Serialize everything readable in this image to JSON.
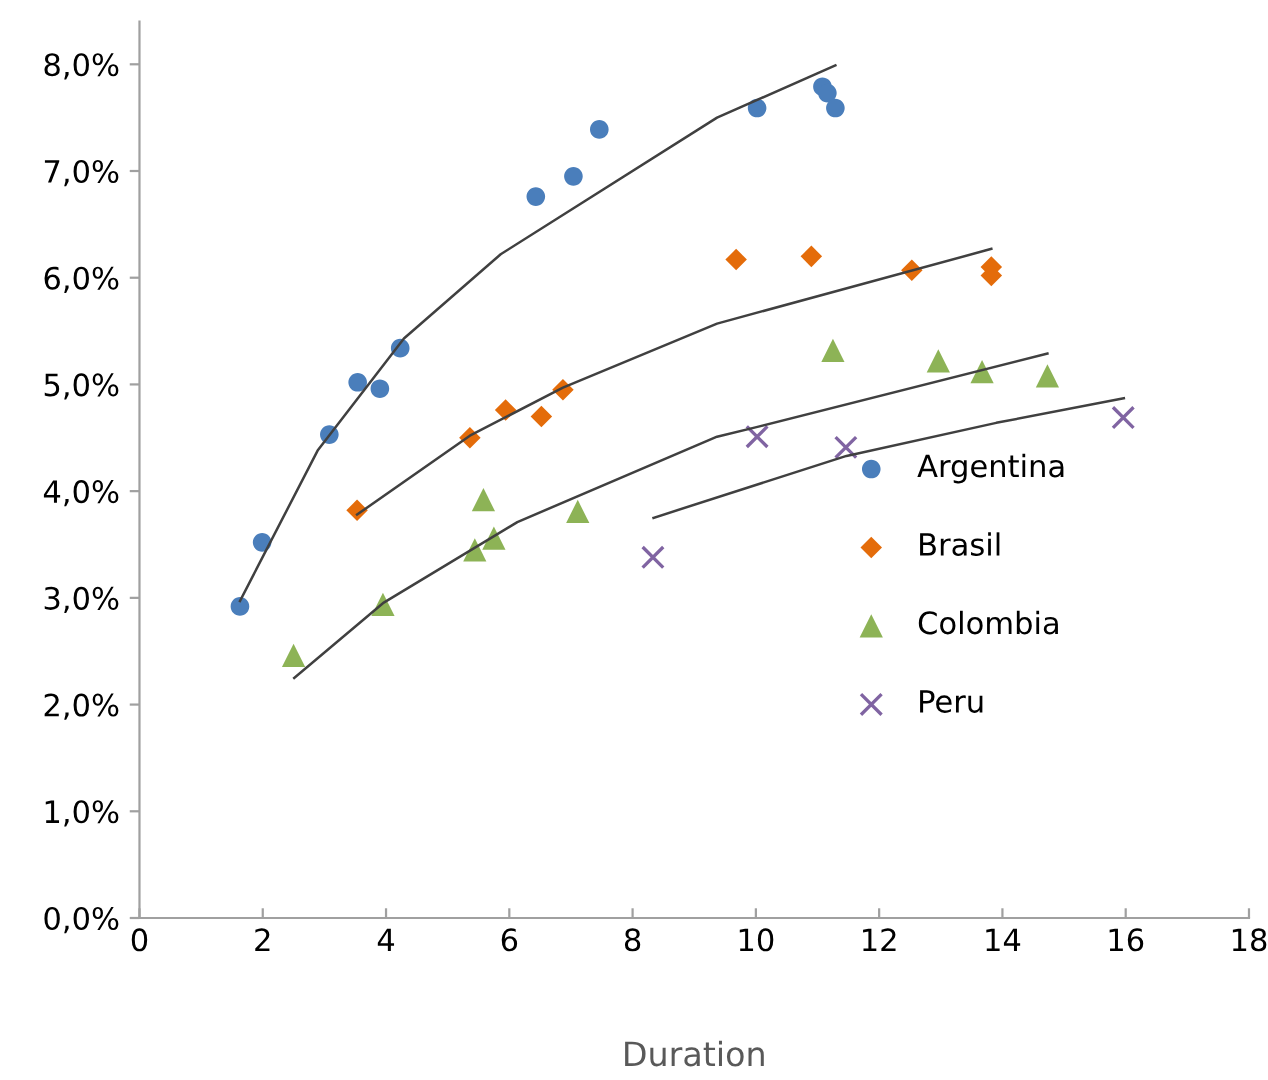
{
  "chart_data": {
    "type": "scatter",
    "xlabel": "Duration",
    "xlim": [
      0,
      18
    ],
    "xticks": [
      0,
      2,
      4,
      6,
      8,
      10,
      12,
      14,
      16,
      18
    ],
    "ylim": [
      0,
      8.4
    ],
    "yticks": [
      {
        "value": 0,
        "label": "0,0%"
      },
      {
        "value": 1,
        "label": "1,0%"
      },
      {
        "value": 2,
        "label": "2,0%"
      },
      {
        "value": 3,
        "label": "3,0%"
      },
      {
        "value": 4,
        "label": "4,0%"
      },
      {
        "value": 5,
        "label": "5,0%"
      },
      {
        "value": 6,
        "label": "6,0%"
      },
      {
        "value": 7,
        "label": "7,0%"
      },
      {
        "value": 8,
        "label": "8,0%"
      }
    ],
    "grid": false,
    "legend": "center right",
    "series": [
      {
        "name": "Argentina",
        "color": "#4a7ebb",
        "marker": "circle",
        "x": [
          1.63,
          1.99,
          3.08,
          3.54,
          3.9,
          4.23,
          6.43,
          7.04,
          7.46,
          10.02,
          11.08,
          11.16,
          11.29
        ],
        "values": [
          2.92,
          3.52,
          4.53,
          5.02,
          4.96,
          5.34,
          6.76,
          6.95,
          7.39,
          7.59,
          7.79,
          7.73,
          7.59
        ]
      },
      {
        "name": "Brasil",
        "color": "#e46c0a",
        "marker": "diamond",
        "x": [
          3.53,
          5.36,
          5.94,
          6.52,
          6.87,
          9.68,
          10.9,
          12.53,
          13.82,
          13.82
        ],
        "values": [
          3.82,
          4.5,
          4.76,
          4.7,
          4.95,
          6.17,
          6.2,
          6.07,
          6.1,
          6.02
        ]
      },
      {
        "name": "Colombia",
        "color": "#8db356",
        "marker": "triangle",
        "x": [
          2.5,
          3.95,
          5.44,
          5.58,
          5.75,
          7.11,
          11.25,
          12.96,
          13.67,
          14.73
        ],
        "values": [
          2.46,
          2.94,
          3.45,
          3.92,
          3.56,
          3.81,
          5.32,
          5.22,
          5.12,
          5.08
        ]
      },
      {
        "name": "Peru",
        "color": "#8064a2",
        "marker": "cross",
        "x": [
          8.33,
          10.02,
          11.46,
          15.96
        ],
        "values": [
          3.38,
          4.51,
          4.41,
          4.69
        ]
      },
      {
        "type": "line",
        "color": "#404040",
        "x": [
          1.63,
          2.89,
          4.29,
          5.86,
          9.37,
          11.29
        ],
        "values": [
          2.97,
          4.38,
          5.43,
          6.22,
          7.5,
          7.99
        ]
      },
      {
        "type": "line",
        "color": "#404040",
        "x": [
          3.53,
          5.36,
          6.87,
          9.37,
          13.82
        ],
        "values": [
          3.78,
          4.52,
          4.97,
          5.57,
          6.27
        ]
      },
      {
        "type": "line",
        "color": "#404040",
        "x": [
          2.51,
          3.95,
          6.13,
          9.37,
          10.01,
          14.73
        ],
        "values": [
          2.25,
          2.95,
          3.71,
          4.51,
          4.6,
          5.29
        ]
      },
      {
        "type": "line",
        "color": "#404040",
        "x": [
          8.34,
          11.47,
          13.9,
          15.97
        ],
        "values": [
          3.75,
          4.33,
          4.64,
          4.87
        ]
      }
    ]
  }
}
